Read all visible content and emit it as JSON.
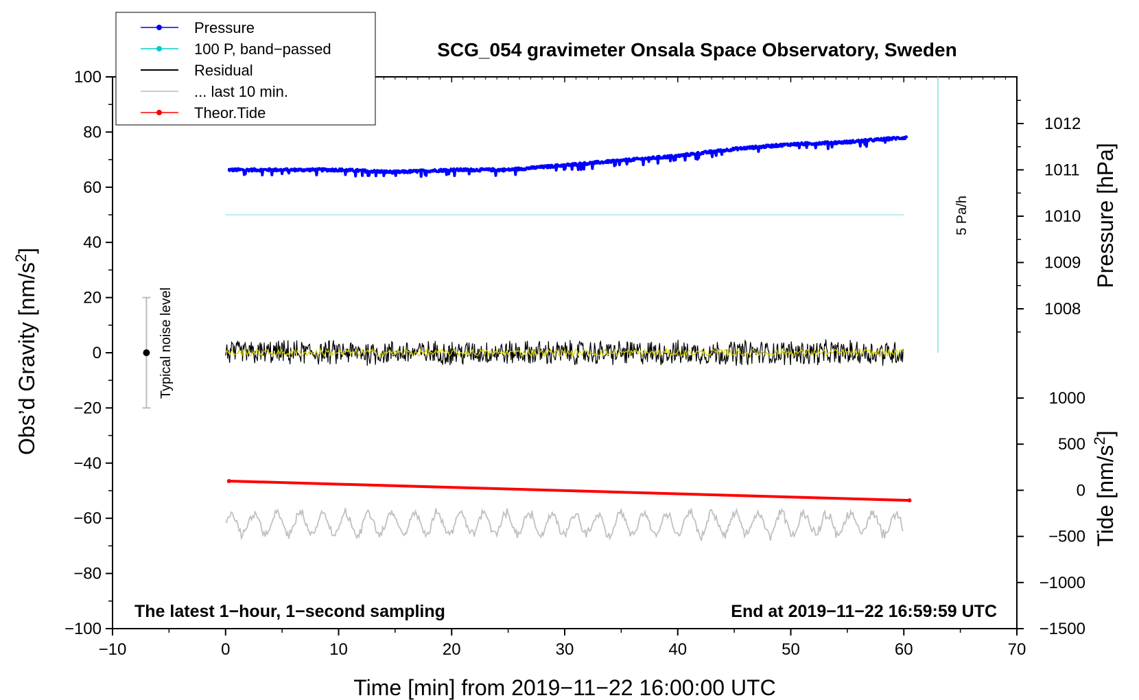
{
  "chart_data": {
    "type": "line",
    "title": "SCG_054 gravimeter Onsala Space Observatory, Sweden",
    "footer_left": "The latest 1−hour, 1−second sampling",
    "footer_right": "End at 2019−11−22 16:59:59 UTC",
    "xlabel": "Time [min] from 2019−11−22 16:00:00 UTC",
    "ylabel_left": "Obs’d Gravity [nm/s",
    "ylabel_left_sup": "2",
    "ylabel_left_end": "]",
    "ylabel_pressure": "Pressure [hPa]",
    "ylabel_tide": "Tide [nm/s",
    "ylabel_tide_sup": "2",
    "ylabel_tide_end": "]",
    "xlim": [
      -10,
      70
    ],
    "ylim": [
      -100,
      100
    ],
    "x_ticks": [
      "−10",
      "0",
      "10",
      "20",
      "30",
      "40",
      "50",
      "60",
      "70"
    ],
    "y_ticks": [
      "100",
      "80",
      "60",
      "40",
      "20",
      "0",
      "−20",
      "−40",
      "−60",
      "−80",
      "−100"
    ],
    "pressure_ticks": [
      "1012",
      "1011",
      "1010",
      "1009",
      "1008"
    ],
    "tide_ticks": [
      "1000",
      "500",
      "0",
      "−500",
      "−1000",
      "−1500"
    ],
    "noise_label": "Typical noise level",
    "noise_bar": {
      "x": -7,
      "center": 0,
      "halfwidth": 20
    },
    "rate_label": "5 Pa/h",
    "legend": {
      "position": "top-left",
      "entries": [
        {
          "label": "Pressure",
          "color": "#0000ff"
        },
        {
          "label": "100 P, band−passed",
          "color": "#00cccc"
        },
        {
          "label": "Residual",
          "color": "#000000"
        },
        {
          "label": "... last 10 min.",
          "color": "#bbbbbb"
        },
        {
          "label": "Theor.Tide",
          "color": "#ff0000"
        }
      ]
    },
    "series": [
      {
        "name": "Pressure",
        "color": "#0000ff",
        "units": "hPa",
        "x": [
          0.2,
          5,
          10,
          15,
          20,
          25,
          30,
          35,
          40,
          45,
          50,
          55,
          60.3
        ],
        "values": [
          1011.0,
          1011.0,
          1011.0,
          1010.95,
          1011.0,
          1011.0,
          1011.1,
          1011.2,
          1011.3,
          1011.45,
          1011.55,
          1011.6,
          1011.7
        ]
      },
      {
        "name": "100 P, band−passed",
        "color": "#00cccc",
        "units": "nm/s2",
        "x": [
          0,
          60
        ],
        "values": [
          50,
          50
        ]
      },
      {
        "name": "Residual",
        "color": "#000000",
        "units": "nm/s2",
        "x": [
          0,
          60
        ],
        "values": [
          0,
          0
        ],
        "amplitude": 4
      },
      {
        "name": "... last 10 min.",
        "color": "#bbbbbb",
        "units": "nm/s2",
        "x": [
          0,
          60
        ],
        "values": [
          -62,
          -62
        ],
        "amplitude": 5
      },
      {
        "name": "Theor.Tide",
        "color": "#ff0000",
        "units": "nm/s2",
        "x": [
          0.3,
          60.5
        ],
        "values": [
          100,
          -110
        ]
      }
    ]
  }
}
